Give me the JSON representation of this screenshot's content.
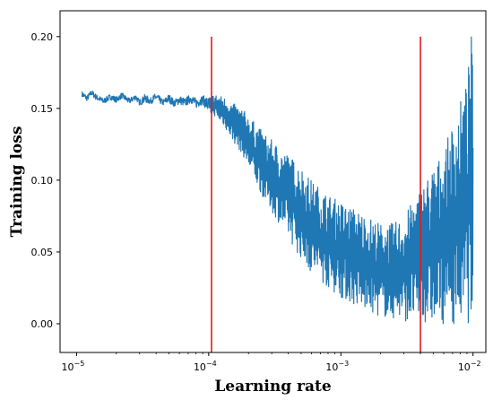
{
  "chart_data": {
    "type": "line",
    "title": "",
    "xlabel": "Learning rate",
    "ylabel": "Training loss",
    "x_scale": "log",
    "xlim": [
      7.5e-06,
      0.0125
    ],
    "ylim": [
      -0.02,
      0.218
    ],
    "x_ticks": [
      {
        "value": 1e-05,
        "base": "10",
        "exp": "−5"
      },
      {
        "value": 0.0001,
        "base": "10",
        "exp": "−4"
      },
      {
        "value": 0.001,
        "base": "10",
        "exp": "−3"
      },
      {
        "value": 0.01,
        "base": "10",
        "exp": "−2"
      }
    ],
    "y_ticks": [
      "0.00",
      "0.05",
      "0.10",
      "0.15",
      "0.20"
    ],
    "grid": false,
    "legend": false,
    "colors": {
      "series": "#1f77b4",
      "markers": "#e41a1c"
    },
    "series": [
      {
        "x": [
          1.1e-05,
          1.2e-05,
          1.3e-05,
          1.4e-05,
          1.6e-05,
          1.8e-05,
          2e-05,
          2.2e-05,
          2.5e-05,
          2.8e-05,
          3e-05,
          3.3e-05,
          3.6e-05,
          4e-05,
          4.5e-05,
          5e-05,
          5.5e-05,
          6e-05,
          6.6e-05,
          7.3e-05,
          8e-05,
          9e-05,
          0.0001,
          0.00011,
          0.00013,
          0.00015,
          0.00018,
          0.0002,
          0.00025,
          0.0003,
          0.0004,
          0.0005,
          0.0006,
          0.0008,
          0.001,
          0.0013,
          0.0016,
          0.002,
          0.0025,
          0.003,
          0.004,
          0.005,
          0.006,
          0.007,
          0.008,
          0.009,
          0.0095,
          0.0098,
          0.01
        ],
        "y": [
          0.16,
          0.157,
          0.161,
          0.158,
          0.155,
          0.158,
          0.156,
          0.159,
          0.155,
          0.158,
          0.154,
          0.157,
          0.155,
          0.158,
          0.154,
          0.157,
          0.153,
          0.156,
          0.154,
          0.157,
          0.153,
          0.156,
          0.152,
          0.153,
          0.148,
          0.142,
          0.135,
          0.128,
          0.115,
          0.105,
          0.09,
          0.078,
          0.068,
          0.058,
          0.05,
          0.043,
          0.037,
          0.031,
          0.026,
          0.023,
          0.022,
          0.021,
          0.021,
          0.022,
          0.023,
          0.024,
          0.035,
          0.08,
          0.04
        ],
        "y_high": [
          0.162,
          0.159,
          0.163,
          0.16,
          0.157,
          0.16,
          0.158,
          0.161,
          0.157,
          0.16,
          0.156,
          0.16,
          0.157,
          0.161,
          0.156,
          0.16,
          0.156,
          0.159,
          0.157,
          0.16,
          0.157,
          0.159,
          0.158,
          0.16,
          0.158,
          0.154,
          0.15,
          0.145,
          0.135,
          0.128,
          0.118,
          0.11,
          0.1,
          0.09,
          0.085,
          0.08,
          0.075,
          0.07,
          0.07,
          0.075,
          0.095,
          0.11,
          0.12,
          0.14,
          0.155,
          0.17,
          0.19,
          0.207,
          0.16
        ],
        "y_low": [
          0.158,
          0.155,
          0.159,
          0.156,
          0.153,
          0.156,
          0.154,
          0.157,
          0.153,
          0.156,
          0.152,
          0.154,
          0.153,
          0.155,
          0.152,
          0.154,
          0.151,
          0.153,
          0.151,
          0.154,
          0.15,
          0.153,
          0.146,
          0.145,
          0.138,
          0.128,
          0.118,
          0.108,
          0.09,
          0.078,
          0.06,
          0.045,
          0.035,
          0.025,
          0.018,
          0.012,
          0.008,
          0.005,
          0.003,
          0.002,
          0.001,
          0.0,
          0.0,
          0.0,
          0.0,
          0.0,
          0.0,
          0.0,
          0.0
        ]
      }
    ],
    "vertical_lines": [
      {
        "x": 0.000105,
        "y_range": [
          -0.02,
          0.2
        ]
      },
      {
        "x": 0.004,
        "y_range": [
          -0.02,
          0.2
        ]
      }
    ]
  }
}
